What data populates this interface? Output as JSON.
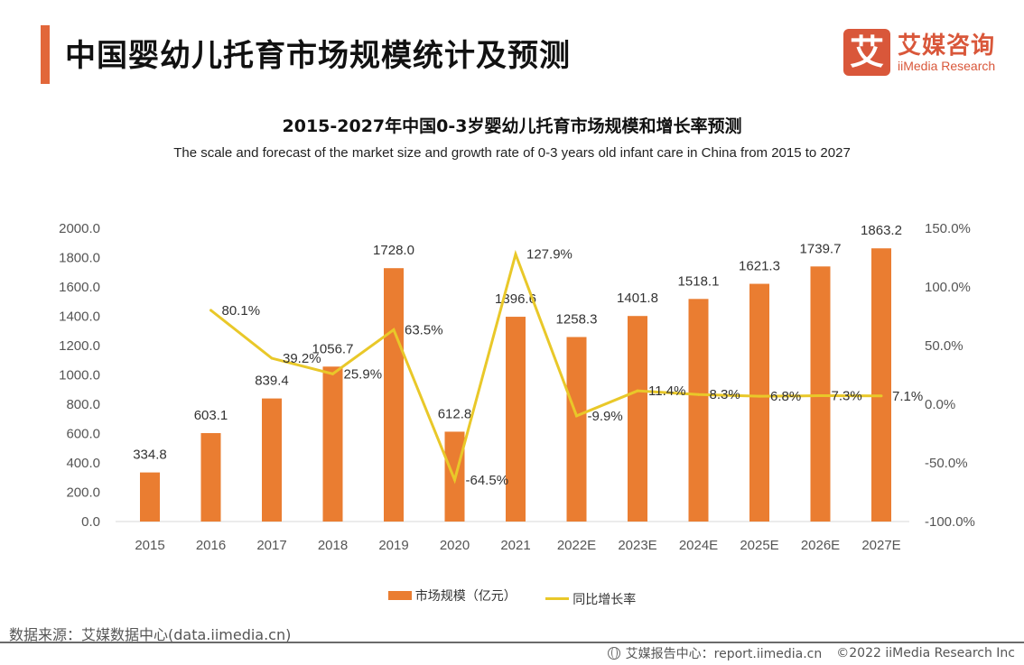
{
  "header": {
    "page_title": "中国婴幼儿托育市场规模统计及预测",
    "logo_mark": "艾",
    "logo_cn": "艾媒咨询",
    "logo_en": "iiMedia Research",
    "accent_color": "#e2673a"
  },
  "chart_data": {
    "type": "bar",
    "title": "2015-2027年中国0-3岁婴幼儿托育市场规模和增长率预测",
    "subtitle": "The scale and forecast of the market size and growth rate of 0-3 years old infant care in China from 2015 to 2027",
    "categories": [
      "2015",
      "2016",
      "2017",
      "2018",
      "2019",
      "2020",
      "2021",
      "2022E",
      "2023E",
      "2024E",
      "2025E",
      "2026E",
      "2027E"
    ],
    "series": [
      {
        "name": "市场规模（亿元）",
        "type": "bar",
        "axis": "left",
        "color": "#ea7d31",
        "values": [
          334.8,
          603.1,
          839.4,
          1056.7,
          1728.0,
          612.8,
          1396.6,
          1258.3,
          1401.8,
          1518.1,
          1621.3,
          1739.7,
          1863.2
        ],
        "labels": [
          "334.8",
          "603.1",
          "839.4",
          "1056.7",
          "1728.0",
          "612.8",
          "1396.6",
          "1258.3",
          "1401.8",
          "1518.1",
          "1621.3",
          "1739.7",
          "1863.2"
        ]
      },
      {
        "name": "同比增长率",
        "type": "line",
        "axis": "right",
        "color": "#e9c829",
        "values": [
          null,
          80.1,
          39.2,
          25.9,
          63.5,
          -64.5,
          127.9,
          -9.9,
          11.4,
          8.3,
          6.8,
          7.3,
          7.1
        ],
        "labels": [
          null,
          "80.1%",
          "39.2%",
          "25.9%",
          "63.5%",
          "-64.5%",
          "127.9%",
          "-9.9%",
          "11.4%",
          "8.3%",
          "6.8%",
          "7.3%",
          "7.1%"
        ]
      }
    ],
    "y_left": {
      "ylim": [
        0,
        2000
      ],
      "ticks": [
        "0.0",
        "200.0",
        "400.0",
        "600.0",
        "800.0",
        "1000.0",
        "1200.0",
        "1400.0",
        "1600.0",
        "1800.0",
        "2000.0"
      ]
    },
    "y_right": {
      "ylim": [
        -100,
        150
      ],
      "ticks": [
        "-100.0%",
        "-50.0%",
        "0.0%",
        "50.0%",
        "100.0%",
        "150.0%"
      ]
    },
    "xlabel": "",
    "ylabel": "",
    "grid": false,
    "legend_position": "bottom-center"
  },
  "legend": {
    "bar_label": "市场规模（亿元）",
    "line_label": "同比增长率"
  },
  "footer": {
    "source": "数据来源：艾媒数据中心(data.iimedia.cn)",
    "report_center": "艾媒报告中心：report.iimedia.cn",
    "copyright": "©2022  iiMedia Research  Inc"
  }
}
